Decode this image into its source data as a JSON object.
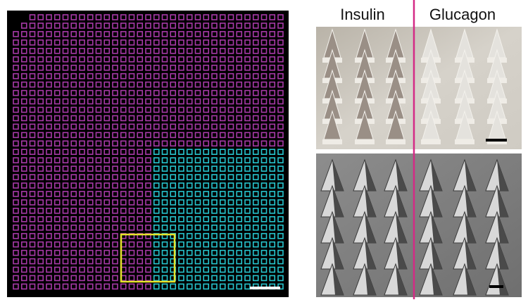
{
  "labels": {
    "left": "Insulin",
    "right": "Glucagon"
  }
}
